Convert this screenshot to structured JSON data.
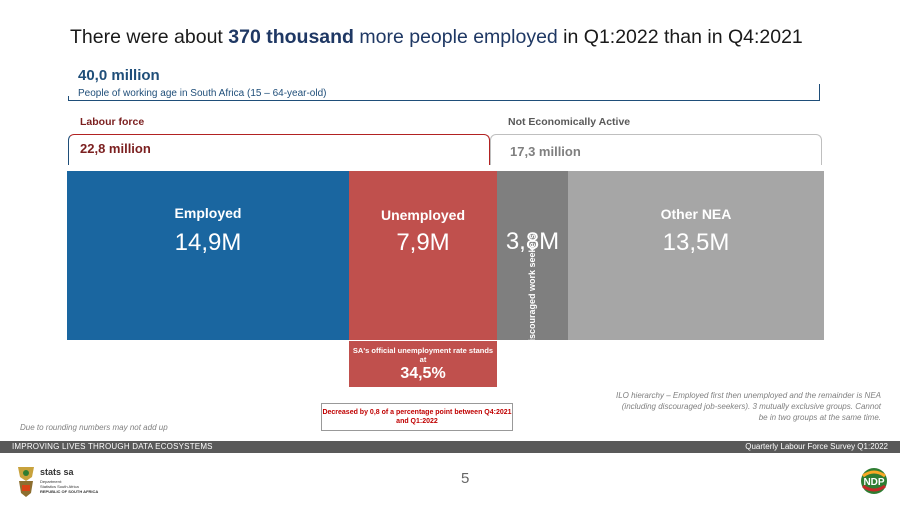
{
  "headline": {
    "prefix": "There were about ",
    "highlight": "370 thousand",
    "middle": " more people employed",
    "suffix": " in Q1:2022 than in Q4:2021"
  },
  "working_age": {
    "value": "40,0 million",
    "description": "People of working age in South Africa (15 – 64-year-old)"
  },
  "labour_force": {
    "title": "Labour force",
    "value": "22,8 million"
  },
  "not_economically_active": {
    "title": "Not Economically Active",
    "value": "17,3 million"
  },
  "blocks": {
    "employed": {
      "label": "Employed",
      "value": "14,9M",
      "color": "#1a66a0"
    },
    "unemployed": {
      "label": "Unemployed",
      "value": "7,9M",
      "color": "#c0504d"
    },
    "discouraged": {
      "label": "Discouraged work seekers",
      "value": "3,8M",
      "color": "#7f7f7f"
    },
    "other_nea": {
      "label": "Other NEA",
      "value": "13,5M",
      "color": "#a6a6a6"
    }
  },
  "unemployment_rate": {
    "text": "SA's official unemployment rate stands at",
    "value": "34,5%"
  },
  "change_note": "Decreased by 0,8 of a percentage point between Q4:2021 and Q1:2022",
  "rounding_note": "Due to rounding numbers may not add up",
  "ilo_note": "ILO hierarchy – Employed first then unemployed and the remainder is NEA (including discouraged job-seekers). 3 mutually exclusive groups. Cannot be in two groups at the same time.",
  "footer": {
    "left": "IMPROVING LIVES THROUGH DATA ECOSYSTEMS",
    "right": "Quarterly Labour Force Survey Q1:2022"
  },
  "page_number": "5",
  "logos": {
    "stats_sa": "stats sa",
    "stats_sa_sub": "Department: Statistics South Africa REPUBLIC OF SOUTH AFRICA",
    "ndp": "NDP"
  }
}
